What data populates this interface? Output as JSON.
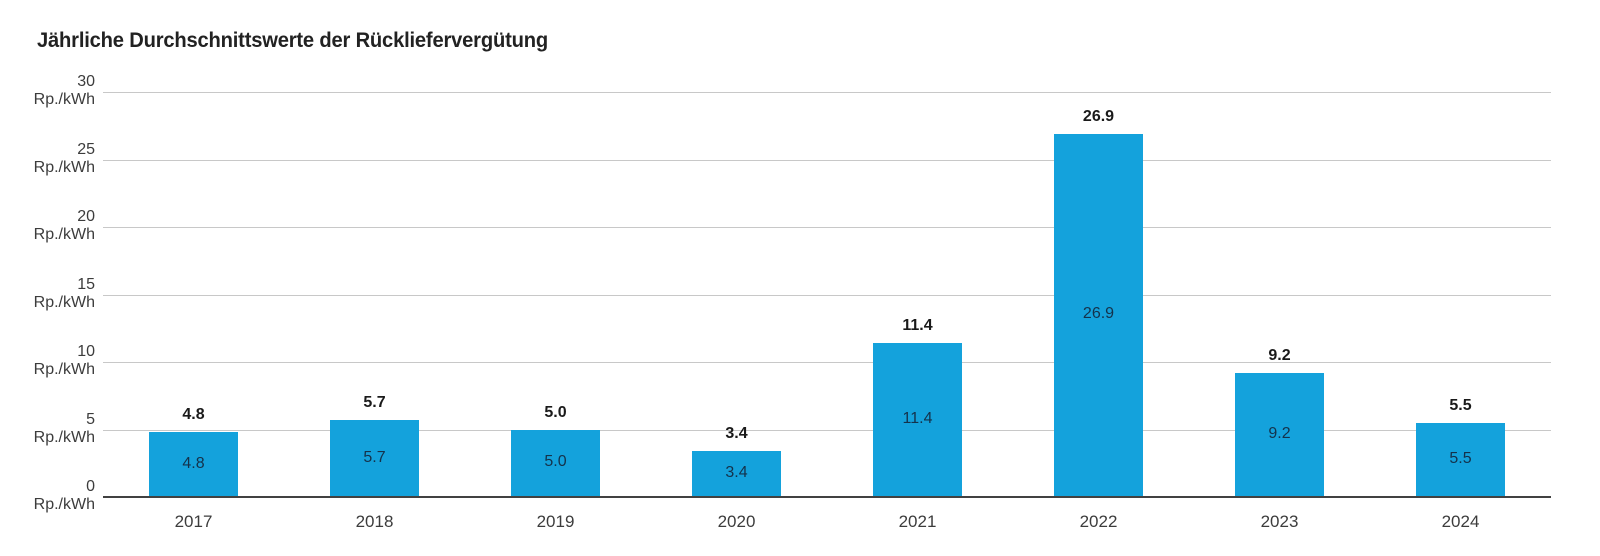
{
  "title": "Jährliche Durchschnittswerte der Rückliefervergütung",
  "colors": {
    "bar_fill": "#14a2dc",
    "gridline": "#c8c8c8",
    "axis_line": "#414141",
    "title_text": "#222222",
    "label_above": "#1a1a1a",
    "label_inside": "#14324b",
    "tick_text": "#3c3c3c"
  },
  "chart_data": {
    "type": "bar",
    "title": "Jährliche Durchschnittswerte der Rückliefervergütung",
    "categories": [
      "2017",
      "2018",
      "2019",
      "2020",
      "2021",
      "2022",
      "2023",
      "2024"
    ],
    "values": [
      4.8,
      5.7,
      5.0,
      3.4,
      11.4,
      26.9,
      9.2,
      5.5
    ],
    "value_labels": [
      "4.8",
      "5.7",
      "5.0",
      "3.4",
      "11.4",
      "26.9",
      "9.2",
      "5.5"
    ],
    "xlabel": "",
    "ylabel": "",
    "ylabel_unit": "Rp./kWh",
    "yticks": [
      0,
      5,
      10,
      15,
      20,
      25,
      30
    ],
    "ylim": [
      0,
      30
    ],
    "grid": true,
    "legend": "none",
    "bar_labels": "above-bold and inside-dark"
  }
}
